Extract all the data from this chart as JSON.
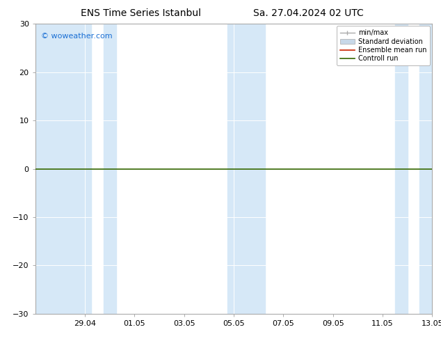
{
  "title_left": "ENS Time Series Istanbul",
  "title_right": "Sa. 27.04.2024 02 UTC",
  "watermark": "© woweather.com",
  "watermark_color": "#1a6fd4",
  "ylim": [
    -30,
    30
  ],
  "yticks": [
    -30,
    -20,
    -10,
    0,
    10,
    20,
    30
  ],
  "x_min": 0.0,
  "x_max": 16.0,
  "xtick_positions": [
    2,
    4,
    6,
    8,
    10,
    12,
    14,
    16
  ],
  "xtick_labels": [
    "29.04",
    "01.05",
    "03.05",
    "05.05",
    "07.05",
    "09.05",
    "11.05",
    "13.05"
  ],
  "bg_color": "#ffffff",
  "plot_bg": "#ffffff",
  "band_color": "#d6e8f7",
  "zero_line_color": "#336600",
  "spine_color": "#aaaaaa",
  "grid_color": "#ffffff",
  "band_positions": [
    [
      0.0,
      2.3
    ],
    [
      2.7,
      3.3
    ],
    [
      7.8,
      8.8
    ],
    [
      8.8,
      9.3
    ],
    [
      14.5,
      15.1
    ],
    [
      15.5,
      16.0
    ]
  ],
  "figsize": [
    6.34,
    4.9
  ],
  "dpi": 100,
  "title_fontsize": 10,
  "tick_fontsize": 8,
  "watermark_fontsize": 8,
  "legend_fontsize": 7
}
